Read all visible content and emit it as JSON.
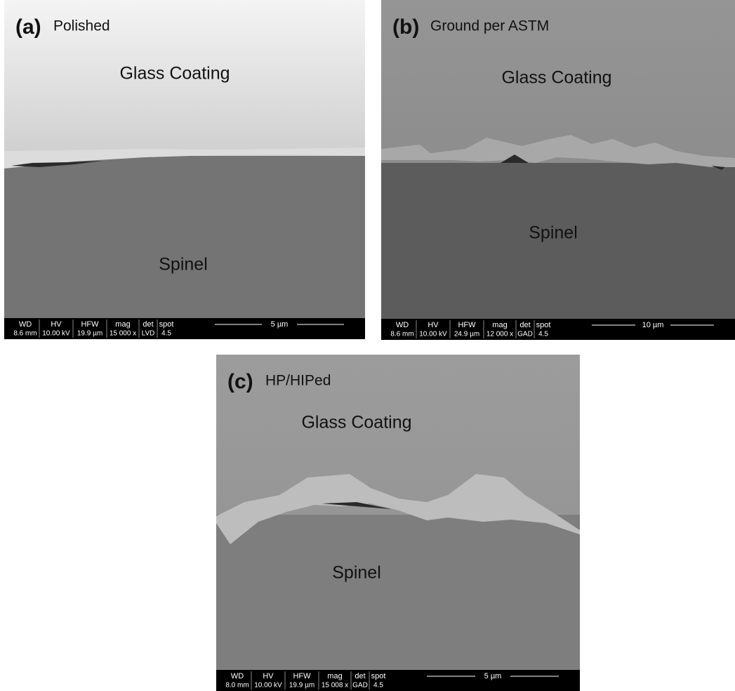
{
  "panels": [
    {
      "label": "(a)",
      "caption": "Polished",
      "regions": [
        "Glass Coating",
        "Spinel"
      ],
      "databar": {
        "headers": [
          "WD",
          "HV",
          "HFW",
          "mag",
          "det",
          "spot"
        ],
        "values": [
          "8.6 mm",
          "10.00 kV",
          "19.9 µm",
          "15 000 x",
          "LVD",
          "4.5"
        ],
        "scale": "5 µm"
      }
    },
    {
      "label": "(b)",
      "caption": "Ground per ASTM",
      "regions": [
        "Glass Coating",
        "Spinel"
      ],
      "databar": {
        "headers": [
          "WD",
          "HV",
          "HFW",
          "mag",
          "det",
          "spot"
        ],
        "values": [
          "8.6 mm",
          "10.00 kV",
          "24.9 µm",
          "12 000 x",
          "GAD",
          "4.5"
        ],
        "scale": "10 µm"
      }
    },
    {
      "label": "(c)",
      "caption": "HP/HIPed",
      "regions": [
        "Glass Coating",
        "Spinel"
      ],
      "databar": {
        "headers": [
          "WD",
          "HV",
          "HFW",
          "mag",
          "det",
          "spot"
        ],
        "values": [
          "8.0 mm",
          "10.00 kV",
          "19.9 µm",
          "15 008 x",
          "GAD",
          "4.5"
        ],
        "scale": "5 µm"
      }
    }
  ]
}
